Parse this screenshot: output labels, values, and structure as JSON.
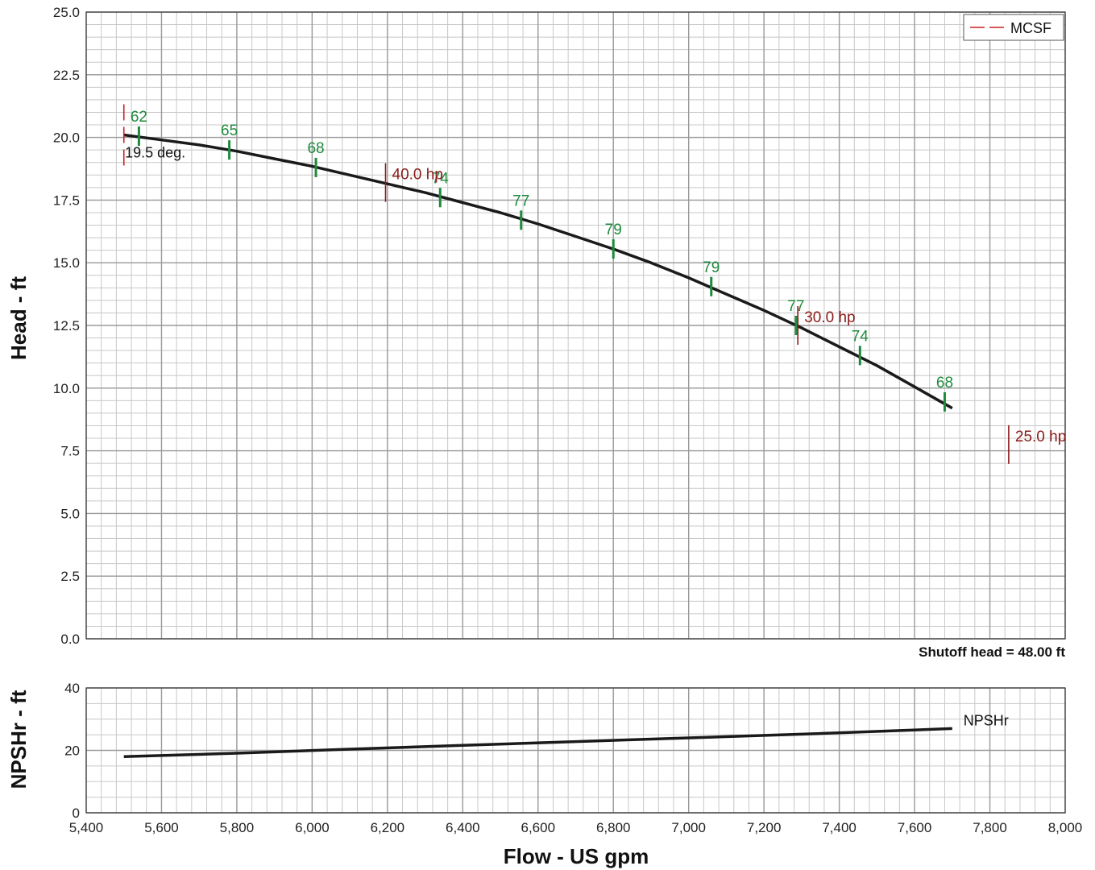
{
  "chart_data": [
    {
      "type": "line",
      "ylabel": "Head - ft",
      "x_ticks": [
        "5,400",
        "5,600",
        "5,800",
        "6,000",
        "6,200",
        "6,400",
        "6,600",
        "6,800",
        "7,000",
        "7,200",
        "7,400",
        "7,600",
        "7,800",
        "8,000"
      ],
      "y_ticks": [
        "0.0",
        "2.5",
        "5.0",
        "7.5",
        "10.0",
        "12.5",
        "15.0",
        "17.5",
        "20.0",
        "22.5",
        "25.0"
      ],
      "xlim": [
        5400,
        8000
      ],
      "ylim": [
        0,
        25
      ],
      "grid": true,
      "legend_position": "top-right",
      "legend": [
        {
          "label": "MCSF",
          "color": "#cc2222",
          "style": "dashed"
        }
      ],
      "series": [
        {
          "x": [
            5500,
            5600,
            5700,
            5800,
            5900,
            6000,
            6100,
            6200,
            6300,
            6400,
            6500,
            6600,
            6700,
            6800,
            6900,
            7000,
            7100,
            7200,
            7300,
            7400,
            7500,
            7600,
            7700
          ],
          "y": [
            20.1,
            19.9,
            19.7,
            19.45,
            19.15,
            18.85,
            18.5,
            18.15,
            17.8,
            17.4,
            17.0,
            16.55,
            16.05,
            15.55,
            15.0,
            14.4,
            13.75,
            13.1,
            12.4,
            11.65,
            10.9,
            10.05,
            9.2
          ]
        }
      ],
      "efficiency_marks": [
        {
          "label": "62",
          "x": 5540,
          "y": 20.05
        },
        {
          "label": "65",
          "x": 5780,
          "y": 19.5
        },
        {
          "label": "68",
          "x": 6010,
          "y": 18.8
        },
        {
          "label": "74",
          "x": 6340,
          "y": 17.6
        },
        {
          "label": "77",
          "x": 6555,
          "y": 16.7
        },
        {
          "label": "79",
          "x": 6800,
          "y": 15.55
        },
        {
          "label": "79",
          "x": 7060,
          "y": 14.05
        },
        {
          "label": "77",
          "x": 7285,
          "y": 12.5
        },
        {
          "label": "74",
          "x": 7455,
          "y": 11.3
        },
        {
          "label": "68",
          "x": 7680,
          "y": 9.45
        }
      ],
      "power_marks": [
        {
          "label": "40.0 hp",
          "x": 6195,
          "y": 18.2
        },
        {
          "label": "30.0 hp",
          "x": 7290,
          "y": 12.5
        },
        {
          "label": "25.0 hp",
          "x": 7850,
          "y": 7.75
        }
      ],
      "mcsf_mark": {
        "x": 5500,
        "y": 20.1
      },
      "annotations": [
        {
          "text": "19.5 deg.",
          "x": 5520,
          "y": 19.2
        },
        {
          "text": "Shutoff head = 48.00 ft",
          "position": "below-right"
        }
      ]
    },
    {
      "type": "line",
      "xlabel": "Flow - US gpm",
      "ylabel": "NPSHr - ft",
      "x_ticks": [
        "5,400",
        "5,600",
        "5,800",
        "6,000",
        "6,200",
        "6,400",
        "6,600",
        "6,800",
        "7,000",
        "7,200",
        "7,400",
        "7,600",
        "7,800",
        "8,000"
      ],
      "y_ticks": [
        "0",
        "20",
        "40"
      ],
      "xlim": [
        5400,
        8000
      ],
      "ylim": [
        0,
        40
      ],
      "grid": true,
      "series": [
        {
          "name": "NPSHr",
          "x": [
            5500,
            5800,
            6100,
            6400,
            6700,
            7000,
            7300,
            7700
          ],
          "y": [
            18.0,
            19.1,
            20.4,
            21.6,
            22.8,
            24.0,
            25.2,
            27.0
          ]
        }
      ]
    }
  ],
  "colors": {
    "curve": "#1a1a1a",
    "efficiency": "#1e8a3c",
    "power": "#8b1a1a",
    "mcsf": "#cc2222",
    "grid_major": "#9a9a9a",
    "grid_minor": "#c8c8c8"
  }
}
